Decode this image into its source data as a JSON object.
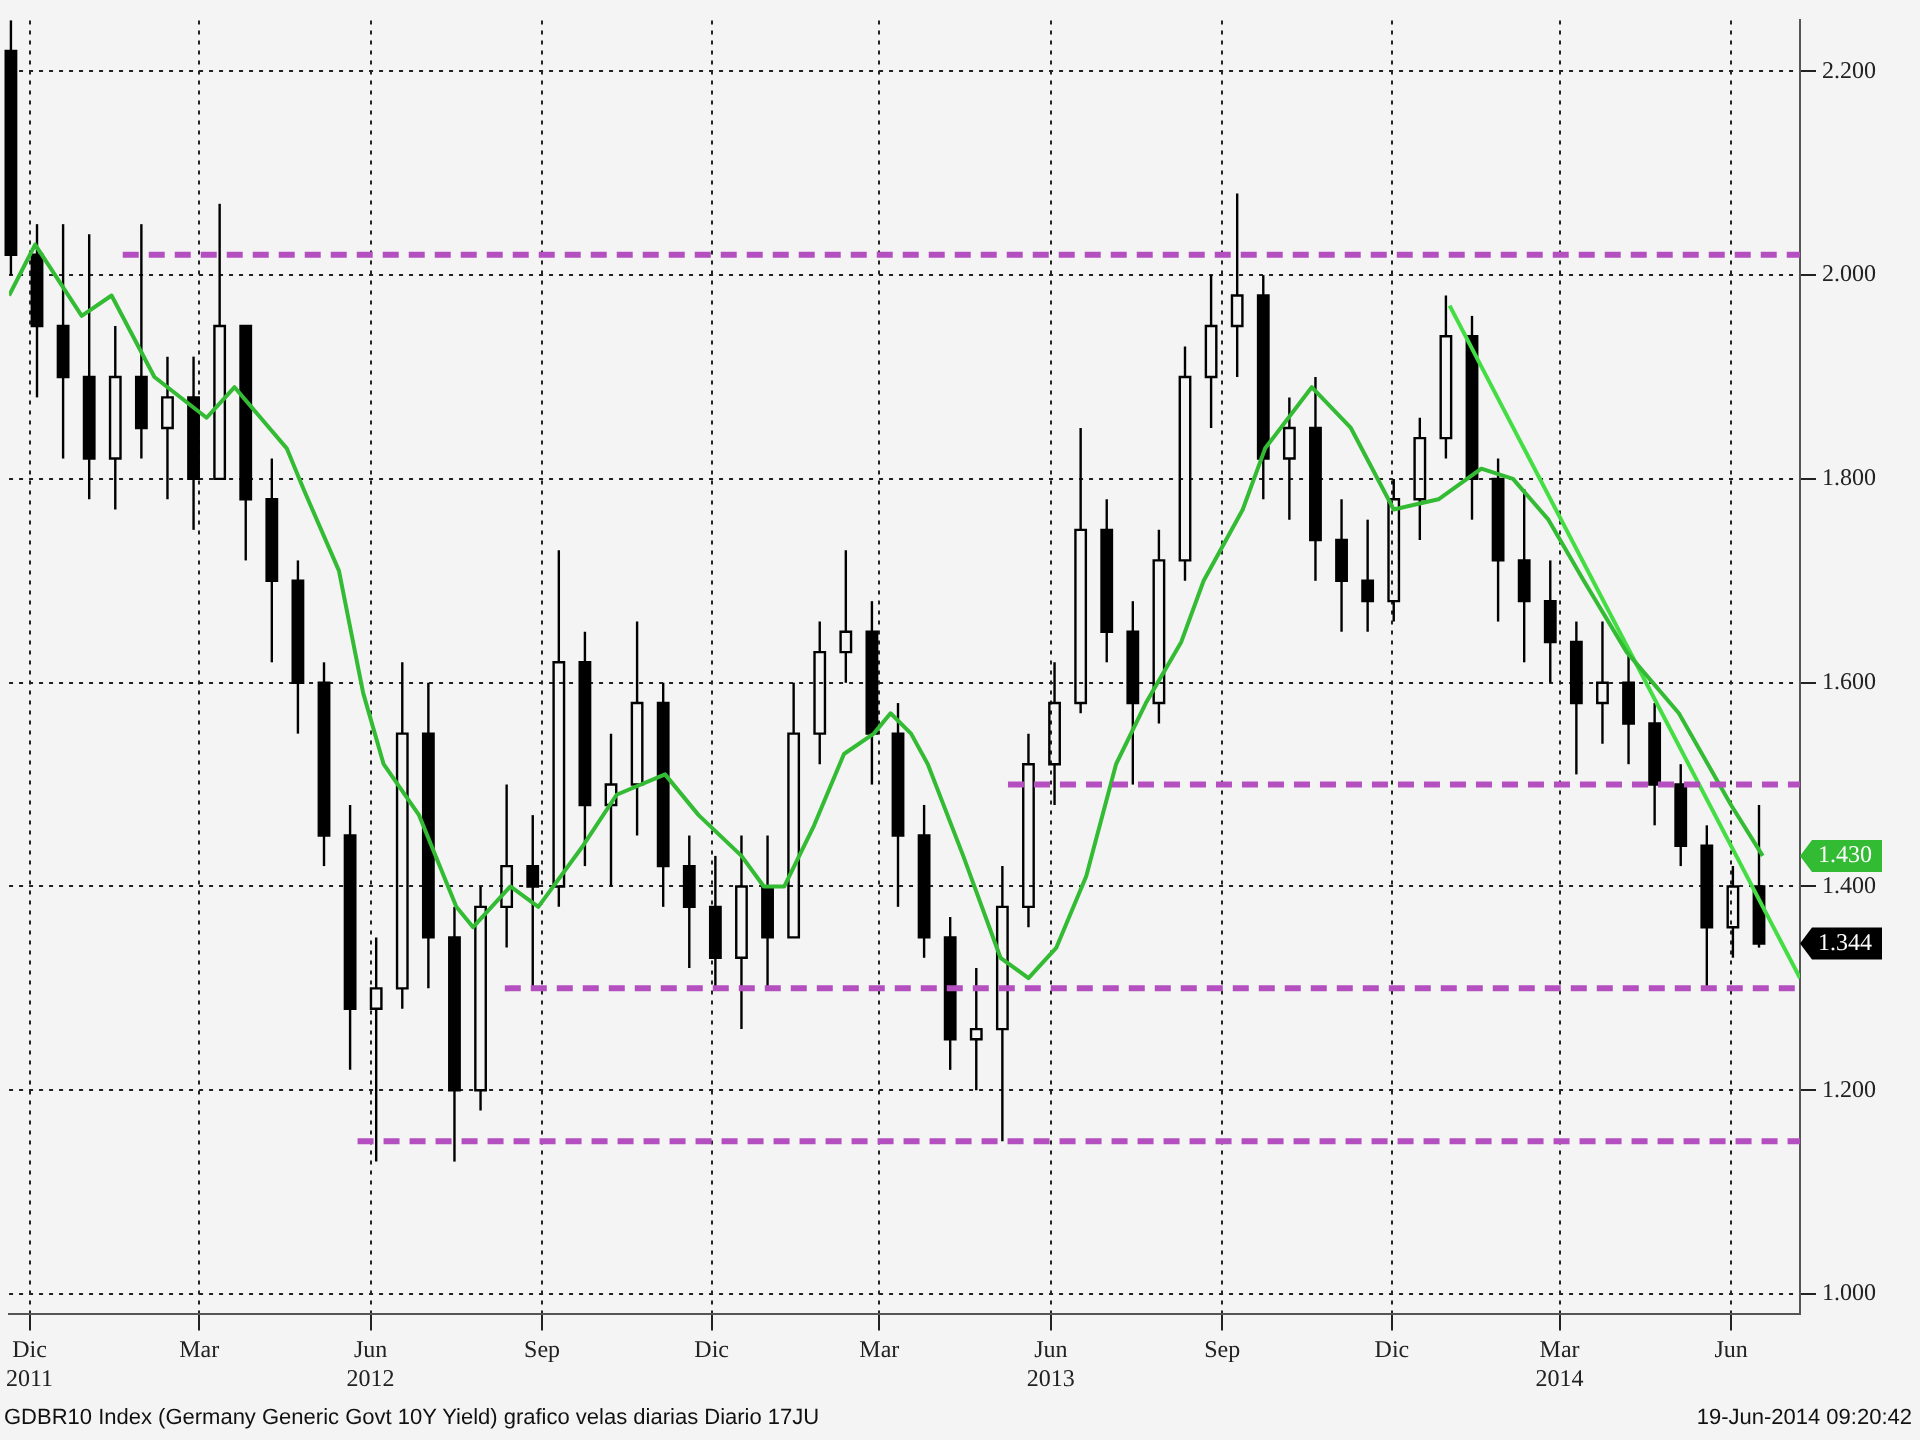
{
  "chart_data": {
    "type": "candlestick",
    "xlim": [
      "2011-11-20",
      "2014-07-08"
    ],
    "ylim": [
      0.98,
      2.25
    ],
    "xticks": [
      {
        "value": "2011-12-01",
        "label": "Dic\n2011"
      },
      {
        "value": "2012-03-01",
        "label": "Mar"
      },
      {
        "value": "2012-06-01",
        "label": "Jun\n2012"
      },
      {
        "value": "2012-09-01",
        "label": "Sep"
      },
      {
        "value": "2012-12-01",
        "label": "Dic"
      },
      {
        "value": "2013-03-01",
        "label": "Mar"
      },
      {
        "value": "2013-06-01",
        "label": "Jun\n2013"
      },
      {
        "value": "2013-09-01",
        "label": "Sep"
      },
      {
        "value": "2013-12-01",
        "label": "Dic"
      },
      {
        "value": "2014-03-01",
        "label": "Mar\n2014"
      },
      {
        "value": "2014-06-01",
        "label": "Jun"
      }
    ],
    "yticks": [
      {
        "value": 1.0,
        "label": "1.000"
      },
      {
        "value": 1.2,
        "label": "1.200"
      },
      {
        "value": 1.4,
        "label": "1.400"
      },
      {
        "value": 1.6,
        "label": "1.600"
      },
      {
        "value": 1.8,
        "label": "1.800"
      },
      {
        "value": 2.0,
        "label": "2.000"
      },
      {
        "value": 2.2,
        "label": "2.200"
      }
    ],
    "grid": true,
    "series": [
      {
        "type": "line",
        "color": "#b44fc0",
        "line_style": "dashed",
        "x": [
          "2012-01-20",
          "2014-07-08"
        ],
        "values": [
          2.02,
          2.02
        ]
      },
      {
        "type": "line",
        "color": "#b44fc0",
        "line_style": "dashed",
        "x": [
          "2013-05-09",
          "2014-07-08"
        ],
        "values": [
          1.5,
          1.5
        ]
      },
      {
        "type": "line",
        "color": "#b44fc0",
        "line_style": "dashed",
        "x": [
          "2012-08-12",
          "2014-07-08"
        ],
        "values": [
          1.3,
          1.3
        ]
      },
      {
        "type": "line",
        "color": "#b44fc0",
        "line_style": "dashed",
        "x": [
          "2012-05-25",
          "2014-07-08"
        ],
        "values": [
          1.15,
          1.15
        ]
      },
      {
        "type": "line",
        "color": "#33bb33",
        "x": [
          "2011-11-20",
          "2011-12-04",
          "2011-12-29",
          "2012-01-14",
          "2012-02-06",
          "2012-03-05",
          "2012-03-20",
          "2012-04-17",
          "2012-04-26",
          "2012-05-15",
          "2012-05-28",
          "2012-06-08",
          "2012-06-27",
          "2012-07-17",
          "2012-07-26",
          "2012-08-15",
          "2012-08-30",
          "2012-09-23",
          "2012-10-11",
          "2012-11-06",
          "2012-11-24",
          "2012-12-17",
          "2012-12-29",
          "2013-01-09",
          "2013-01-25",
          "2013-02-10",
          "2013-02-26",
          "2013-03-07",
          "2013-03-18",
          "2013-03-27",
          "2013-04-15",
          "2013-05-05",
          "2013-05-20",
          "2013-06-04",
          "2013-06-20",
          "2013-07-06",
          "2013-07-22",
          "2013-08-10",
          "2013-08-22",
          "2013-09-12",
          "2013-09-24",
          "2013-10-19",
          "2013-11-09",
          "2013-12-02",
          "2013-12-26",
          "2014-01-18",
          "2014-02-04",
          "2014-02-23",
          "2014-03-14",
          "2014-04-06",
          "2014-05-04",
          "2014-06-01",
          "2014-06-18"
        ],
        "values": [
          1.98,
          2.03,
          1.96,
          1.98,
          1.9,
          1.86,
          1.89,
          1.83,
          1.79,
          1.71,
          1.59,
          1.52,
          1.47,
          1.38,
          1.36,
          1.4,
          1.38,
          1.44,
          1.49,
          1.51,
          1.47,
          1.43,
          1.4,
          1.4,
          1.46,
          1.53,
          1.55,
          1.57,
          1.55,
          1.52,
          1.43,
          1.33,
          1.31,
          1.34,
          1.41,
          1.52,
          1.58,
          1.64,
          1.7,
          1.77,
          1.83,
          1.89,
          1.85,
          1.77,
          1.78,
          1.81,
          1.8,
          1.76,
          1.7,
          1.63,
          1.57,
          1.48,
          1.43
        ]
      },
      {
        "type": "line",
        "color": "#44dd44",
        "x": [
          "2014-01-01",
          "2014-07-08"
        ],
        "values": [
          1.97,
          1.31
        ]
      },
      {
        "color": "#000000",
        "x": [
          "2011-11-21",
          "2011-12-05",
          "2011-12-19",
          "2012-01-02",
          "2012-01-16",
          "2012-01-30",
          "2012-02-13",
          "2012-02-27",
          "2012-03-12",
          "2012-03-26",
          "2012-04-09",
          "2012-04-23",
          "2012-05-07",
          "2012-05-21",
          "2012-06-04",
          "2012-06-18",
          "2012-07-02",
          "2012-07-16",
          "2012-07-30",
          "2012-08-13",
          "2012-08-27",
          "2012-09-10",
          "2012-09-24",
          "2012-10-08",
          "2012-10-22",
          "2012-11-05",
          "2012-11-19",
          "2012-12-03",
          "2012-12-17",
          "2012-12-31",
          "2013-01-14",
          "2013-01-28",
          "2013-02-11",
          "2013-02-25",
          "2013-03-11",
          "2013-03-25",
          "2013-04-08",
          "2013-04-22",
          "2013-05-06",
          "2013-05-20",
          "2013-06-03",
          "2013-06-17",
          "2013-07-01",
          "2013-07-15",
          "2013-07-29",
          "2013-08-12",
          "2013-08-26",
          "2013-09-09",
          "2013-09-23",
          "2013-10-07",
          "2013-10-21",
          "2013-11-04",
          "2013-11-18",
          "2013-12-02",
          "2013-12-16",
          "2013-12-30",
          "2014-01-13",
          "2014-01-27",
          "2014-02-10",
          "2014-02-24",
          "2014-03-10",
          "2014-03-24",
          "2014-04-07",
          "2014-04-21",
          "2014-05-05",
          "2014-05-19",
          "2014-06-02",
          "2014-06-16"
        ],
        "ohlc": [
          [
            2.22,
            2.25,
            2.0,
            2.02
          ],
          [
            2.02,
            2.05,
            1.88,
            1.95
          ],
          [
            1.95,
            2.05,
            1.82,
            1.9
          ],
          [
            1.9,
            2.04,
            1.78,
            1.82
          ],
          [
            1.82,
            1.95,
            1.77,
            1.9
          ],
          [
            1.9,
            2.05,
            1.82,
            1.85
          ],
          [
            1.85,
            1.92,
            1.78,
            1.88
          ],
          [
            1.88,
            1.92,
            1.75,
            1.8
          ],
          [
            1.8,
            2.07,
            1.8,
            1.95
          ],
          [
            1.95,
            1.95,
            1.72,
            1.78
          ],
          [
            1.78,
            1.82,
            1.62,
            1.7
          ],
          [
            1.7,
            1.72,
            1.55,
            1.6
          ],
          [
            1.6,
            1.62,
            1.42,
            1.45
          ],
          [
            1.45,
            1.48,
            1.22,
            1.28
          ],
          [
            1.28,
            1.35,
            1.13,
            1.3
          ],
          [
            1.3,
            1.62,
            1.28,
            1.55
          ],
          [
            1.55,
            1.6,
            1.3,
            1.35
          ],
          [
            1.35,
            1.38,
            1.13,
            1.2
          ],
          [
            1.2,
            1.4,
            1.18,
            1.38
          ],
          [
            1.38,
            1.5,
            1.34,
            1.42
          ],
          [
            1.42,
            1.47,
            1.3,
            1.4
          ],
          [
            1.4,
            1.73,
            1.38,
            1.62
          ],
          [
            1.62,
            1.65,
            1.42,
            1.48
          ],
          [
            1.48,
            1.55,
            1.4,
            1.5
          ],
          [
            1.5,
            1.66,
            1.45,
            1.58
          ],
          [
            1.58,
            1.6,
            1.38,
            1.42
          ],
          [
            1.42,
            1.45,
            1.32,
            1.38
          ],
          [
            1.38,
            1.43,
            1.3,
            1.33
          ],
          [
            1.33,
            1.45,
            1.26,
            1.4
          ],
          [
            1.4,
            1.45,
            1.3,
            1.35
          ],
          [
            1.35,
            1.6,
            1.35,
            1.55
          ],
          [
            1.55,
            1.66,
            1.52,
            1.63
          ],
          [
            1.63,
            1.73,
            1.6,
            1.65
          ],
          [
            1.65,
            1.68,
            1.5,
            1.55
          ],
          [
            1.55,
            1.58,
            1.38,
            1.45
          ],
          [
            1.45,
            1.48,
            1.33,
            1.35
          ],
          [
            1.35,
            1.37,
            1.22,
            1.25
          ],
          [
            1.25,
            1.32,
            1.2,
            1.26
          ],
          [
            1.26,
            1.42,
            1.15,
            1.38
          ],
          [
            1.38,
            1.55,
            1.36,
            1.52
          ],
          [
            1.52,
            1.62,
            1.48,
            1.58
          ],
          [
            1.58,
            1.85,
            1.57,
            1.75
          ],
          [
            1.75,
            1.78,
            1.62,
            1.65
          ],
          [
            1.65,
            1.68,
            1.5,
            1.58
          ],
          [
            1.58,
            1.75,
            1.56,
            1.72
          ],
          [
            1.72,
            1.93,
            1.7,
            1.9
          ],
          [
            1.9,
            2.0,
            1.85,
            1.95
          ],
          [
            1.95,
            2.08,
            1.9,
            1.98
          ],
          [
            1.98,
            2.0,
            1.78,
            1.82
          ],
          [
            1.82,
            1.88,
            1.76,
            1.85
          ],
          [
            1.85,
            1.9,
            1.7,
            1.74
          ],
          [
            1.74,
            1.78,
            1.65,
            1.7
          ],
          [
            1.7,
            1.76,
            1.65,
            1.68
          ],
          [
            1.68,
            1.8,
            1.66,
            1.78
          ],
          [
            1.78,
            1.86,
            1.74,
            1.84
          ],
          [
            1.84,
            1.98,
            1.82,
            1.94
          ],
          [
            1.94,
            1.96,
            1.76,
            1.8
          ],
          [
            1.8,
            1.82,
            1.66,
            1.72
          ],
          [
            1.72,
            1.79,
            1.62,
            1.68
          ],
          [
            1.68,
            1.72,
            1.6,
            1.64
          ],
          [
            1.64,
            1.66,
            1.51,
            1.58
          ],
          [
            1.58,
            1.66,
            1.54,
            1.6
          ],
          [
            1.6,
            1.63,
            1.52,
            1.56
          ],
          [
            1.56,
            1.58,
            1.46,
            1.5
          ],
          [
            1.5,
            1.52,
            1.42,
            1.44
          ],
          [
            1.44,
            1.46,
            1.3,
            1.36
          ],
          [
            1.36,
            1.42,
            1.33,
            1.4
          ],
          [
            1.4,
            1.48,
            1.34,
            1.344
          ]
        ]
      }
    ],
    "annotations": [
      {
        "text": "1.430",
        "x": "2014-06-18",
        "y": 1.43
      },
      {
        "text": "1.344",
        "x": "2014-06-16",
        "y": 1.344
      },
      "GDBR10 Index (Germany Generic Govt 10Y Yield) grafico velas diarias Diario 17JU",
      "19-Jun-2014 09:20:42"
    ]
  }
}
